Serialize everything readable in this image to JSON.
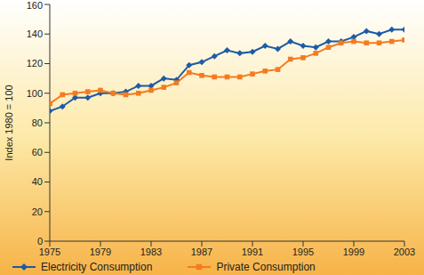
{
  "chart_data": {
    "type": "line",
    "y_label": "Index 1980 = 100",
    "x": [
      1975,
      1976,
      1977,
      1978,
      1979,
      1980,
      1981,
      1982,
      1983,
      1984,
      1985,
      1986,
      1987,
      1988,
      1989,
      1990,
      1991,
      1992,
      1993,
      1994,
      1995,
      1996,
      1997,
      1998,
      1999,
      2000,
      2001,
      2002,
      2003
    ],
    "series": [
      {
        "name": "Electricity  Consumption",
        "color": "#1d5ba6",
        "marker": "diamond",
        "values": [
          88,
          91,
          97,
          97,
          100,
          100,
          101,
          105,
          105,
          110,
          109,
          119,
          121,
          125,
          129,
          127,
          128,
          132,
          130,
          135,
          132,
          131,
          135,
          135,
          138,
          142,
          140,
          143,
          143
        ]
      },
      {
        "name": "Private Consumption",
        "color": "#f47b20",
        "marker": "square",
        "values": [
          93,
          99,
          100,
          101,
          102,
          100,
          99,
          100,
          102,
          104,
          107,
          114,
          112,
          111,
          111,
          111,
          113,
          115,
          116,
          123,
          124,
          127,
          131,
          134,
          135,
          134,
          134,
          135,
          136
        ]
      }
    ],
    "xlim": [
      1975,
      2003
    ],
    "xticks": [
      1975,
      1979,
      1983,
      1987,
      1991,
      1995,
      1999,
      2003
    ],
    "ylim": [
      0,
      160
    ],
    "yticks": [
      0,
      20,
      40,
      60,
      80,
      100,
      120,
      140,
      160
    ],
    "grid": false,
    "legend": "bottom"
  }
}
